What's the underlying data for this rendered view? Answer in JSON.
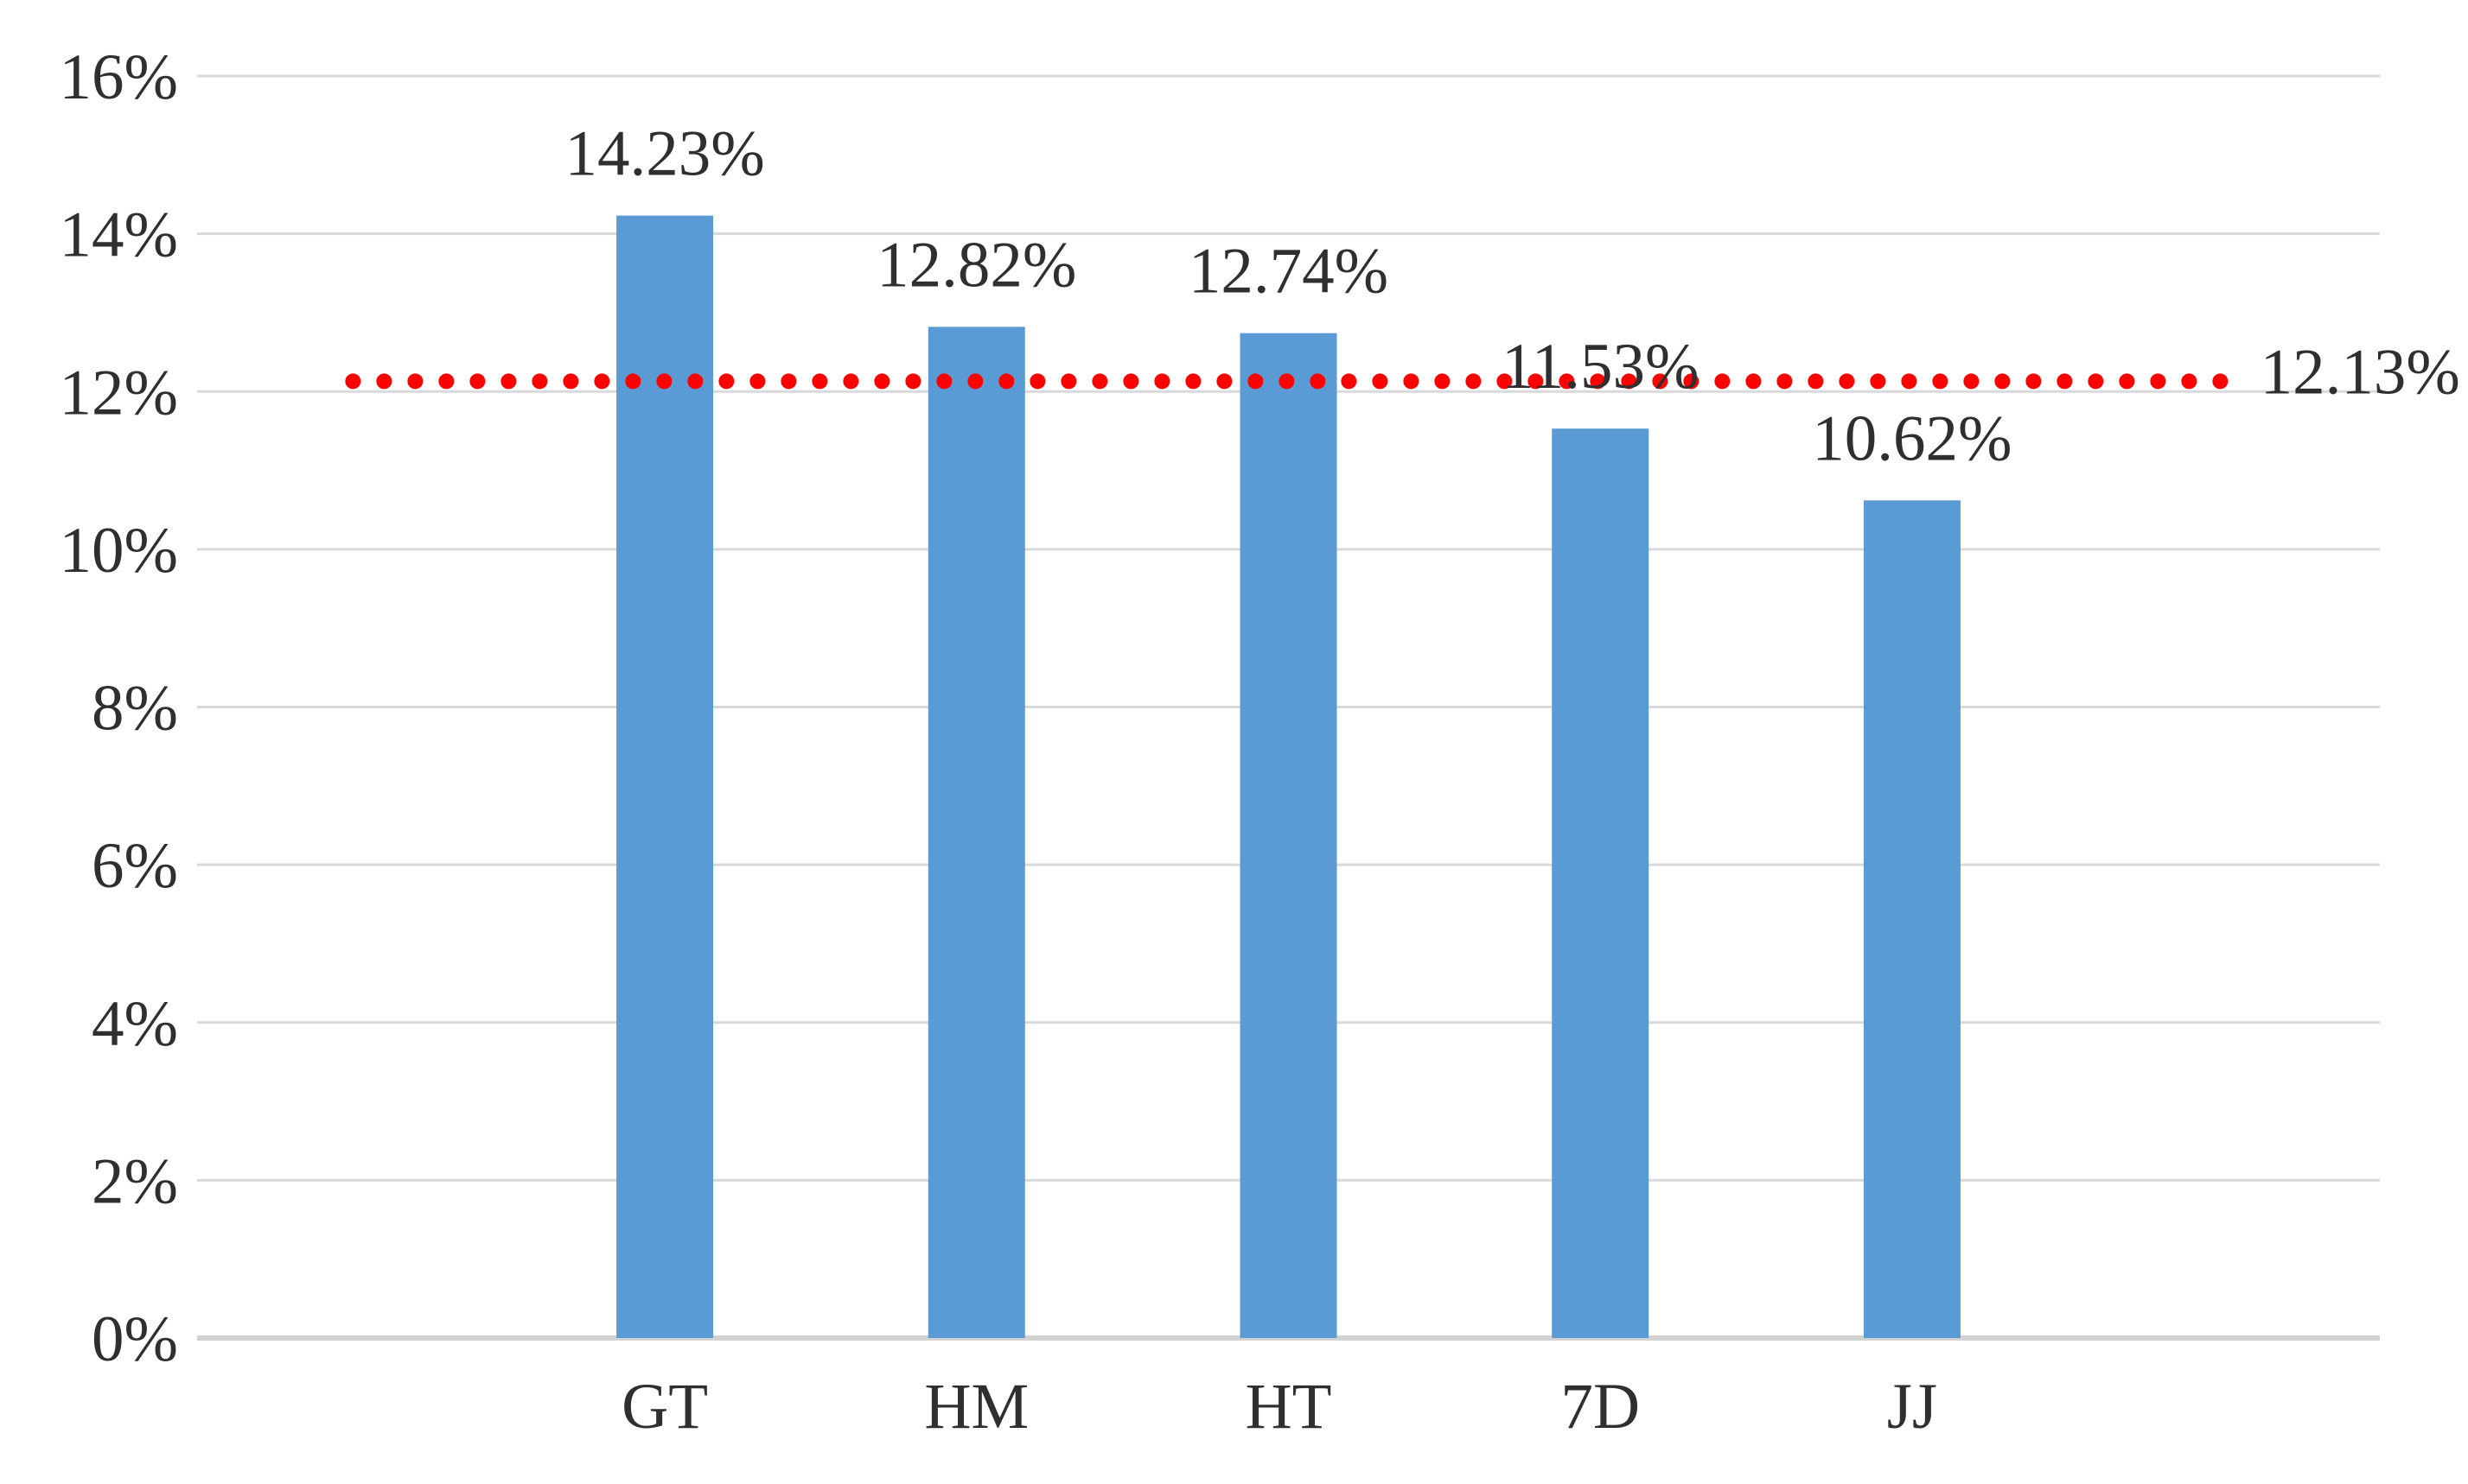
{
  "chart_data": {
    "type": "bar",
    "title": "",
    "categories": [
      "GT",
      "HM",
      "HT",
      "7D",
      "JJ"
    ],
    "values": [
      14.23,
      12.82,
      12.74,
      11.53,
      10.62
    ],
    "data_labels": [
      "14.23%",
      "12.82%",
      "12.74%",
      "11.53%",
      "10.62%"
    ],
    "reference_line": {
      "value": 12.13,
      "label": "12.13%",
      "style": "dotted",
      "color": "#fe0000"
    },
    "y_axis": {
      "min": 0,
      "max": 16,
      "step": 2,
      "tick_labels": [
        "0%",
        "2%",
        "4%",
        "6%",
        "8%",
        "10%",
        "12%",
        "14%",
        "16%"
      ]
    },
    "x_axis": {
      "visible_category_slots": 7,
      "bar_slots": [
        1,
        2,
        3,
        4,
        5
      ]
    },
    "grid": true,
    "legend": false,
    "colors": {
      "bar": "#5b9bd5",
      "gridline": "#d9d9d9",
      "axis_line": "#d2d2d2",
      "text": "#2f2f2f",
      "background": "#ffffff"
    }
  }
}
